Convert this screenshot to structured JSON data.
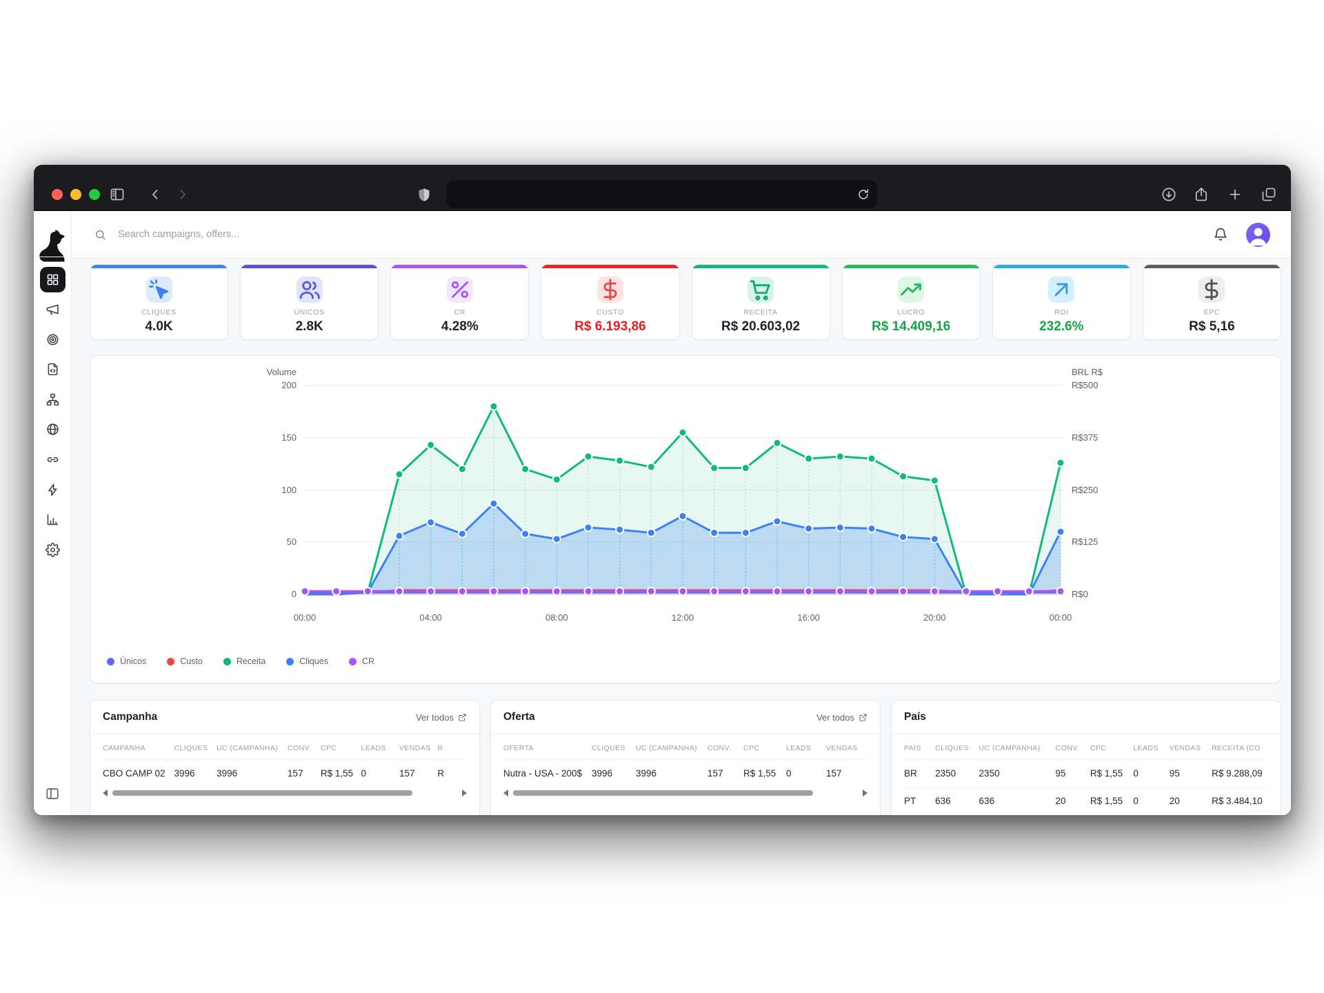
{
  "browser": {
    "traffic_lights": [
      "#ff5f57",
      "#febc2e",
      "#28c840"
    ],
    "left_icons": [
      "panel-left-icon",
      "chevron-left-icon",
      "chevron-right-icon"
    ],
    "shield_icon": "shield-icon",
    "url_value": "",
    "url_reload_icon": "reload-icon",
    "right_icons": [
      "download-icon",
      "share-icon",
      "new-tab-icon",
      "tab-overview-icon"
    ]
  },
  "brand": {
    "logo_icon": "dog-logo-icon"
  },
  "sidebar": {
    "items": [
      {
        "name": "dashboard",
        "icon": "grid-icon",
        "active": true
      },
      {
        "name": "campaigns",
        "icon": "megaphone-icon",
        "active": false
      },
      {
        "name": "tracking",
        "icon": "target-icon",
        "active": false
      },
      {
        "name": "pages",
        "icon": "file-code-icon",
        "active": false
      },
      {
        "name": "funnels",
        "icon": "sitemap-icon",
        "active": false
      },
      {
        "name": "domains",
        "icon": "globe-icon",
        "active": false
      },
      {
        "name": "links",
        "icon": "link-icon",
        "active": false
      },
      {
        "name": "integrations",
        "icon": "zap-icon",
        "active": false
      },
      {
        "name": "reports",
        "icon": "bar-chart-icon",
        "active": false
      },
      {
        "name": "settings",
        "icon": "gear-icon",
        "active": false
      }
    ],
    "collapse_icon": "sidebar-collapse-icon"
  },
  "topbar": {
    "search_placeholder": "Search campaigns, offers...",
    "bell_icon": "bell-icon",
    "avatar_icon": "user-icon"
  },
  "kpis": [
    {
      "label": "CLIQUES",
      "value": "4.0K",
      "icon": "cursor-click-icon",
      "accent": "#3b86f6",
      "tile_bg": "#dceafd",
      "icon_color": "#3b82f6",
      "value_color": "#1f2228"
    },
    {
      "label": "ÚNICOS",
      "value": "2.8K",
      "icon": "users-icon",
      "accent": "#5552d9",
      "tile_bg": "#e2e4fb",
      "icon_color": "#5b5bd6",
      "value_color": "#1f2228"
    },
    {
      "label": "CR",
      "value": "4.28%",
      "icon": "percent-icon",
      "accent": "#a855f7",
      "tile_bg": "#f2e6fc",
      "icon_color": "#a855f7",
      "value_color": "#1f2228"
    },
    {
      "label": "CUSTO",
      "value": "R$ 6.193,86",
      "icon": "dollar-icon",
      "accent": "#ee2222",
      "tile_bg": "#fde3e3",
      "icon_color": "#ef4444",
      "value_color": "#e51d1d"
    },
    {
      "label": "RECEITA",
      "value": "R$ 20.603,02",
      "icon": "cart-icon",
      "accent": "#10b981",
      "tile_bg": "#d7f3e6",
      "icon_color": "#10a875",
      "value_color": "#1f2228"
    },
    {
      "label": "LUCRO",
      "value": "R$ 14.409,16",
      "icon": "trend-up-icon",
      "accent": "#1fc05a",
      "tile_bg": "#dcf7e4",
      "icon_color": "#22b45e",
      "value_color": "#16a34a"
    },
    {
      "label": "ROI",
      "value": "232.6%",
      "icon": "arrow-up-right-icon",
      "accent": "#29aae1",
      "tile_bg": "#d3f0fd",
      "icon_color": "#3b94f0",
      "value_color": "#16a34a"
    },
    {
      "label": "EPC",
      "value": "R$ 5,16",
      "icon": "dollar-icon",
      "accent": "#5c5c66",
      "tile_bg": "#ededf0",
      "icon_color": "#52525b",
      "value_color": "#1f2228"
    }
  ],
  "chart_data": {
    "type": "line",
    "x": [
      "00:00",
      "01:00",
      "02:00",
      "03:00",
      "04:00",
      "05:00",
      "06:00",
      "07:00",
      "08:00",
      "09:00",
      "10:00",
      "11:00",
      "12:00",
      "13:00",
      "14:00",
      "15:00",
      "16:00",
      "17:00",
      "18:00",
      "19:00",
      "20:00",
      "21:00",
      "22:00",
      "23:00",
      "00:00"
    ],
    "x_tick_indices": [
      0,
      4,
      8,
      12,
      16,
      20,
      24
    ],
    "left_axis": {
      "label": "Volume",
      "ticks": [
        "0",
        "50",
        "100",
        "150",
        "200"
      ],
      "range": [
        0,
        200
      ]
    },
    "right_axis": {
      "label": "BRL R$",
      "ticks": [
        "R$0",
        "R$125",
        "R$250",
        "R$375",
        "R$500"
      ],
      "range": [
        0,
        500
      ]
    },
    "grid": true,
    "legend_position": "bottom-left",
    "series": [
      {
        "name": "Únicos",
        "color": "#6366f1",
        "values": [
          2,
          2,
          2,
          2,
          2,
          2,
          2,
          2,
          2,
          2,
          2,
          2,
          2,
          2,
          2,
          2,
          2,
          2,
          2,
          2,
          2,
          2,
          2,
          2,
          2
        ]
      },
      {
        "name": "Custo",
        "color": "#ef4444",
        "values": [
          2,
          2,
          2,
          4,
          4,
          4,
          4,
          4,
          4,
          4,
          4,
          4,
          4,
          4,
          4,
          4,
          4,
          4,
          4,
          4,
          4,
          2,
          2,
          2,
          4
        ]
      },
      {
        "name": "Receita",
        "color": "#10b981",
        "area": "rgba(16,185,129,0.10)",
        "values": [
          0,
          0,
          2,
          115,
          143,
          120,
          180,
          120,
          110,
          132,
          128,
          122,
          155,
          121,
          121,
          145,
          130,
          132,
          130,
          113,
          109,
          0,
          0,
          0,
          126
        ]
      },
      {
        "name": "Cliques",
        "color": "#3b82f6",
        "area": "rgba(59,130,246,0.25)",
        "values": [
          0,
          0,
          2,
          56,
          69,
          58,
          87,
          58,
          53,
          64,
          62,
          59,
          75,
          59,
          59,
          70,
          63,
          64,
          63,
          55,
          53,
          0,
          0,
          0,
          60
        ]
      },
      {
        "name": "CR",
        "color": "#a855f7",
        "values": [
          3,
          3,
          3,
          3,
          3,
          3,
          3,
          3,
          3,
          3,
          3,
          3,
          3,
          3,
          3,
          3,
          3,
          3,
          3,
          3,
          3,
          3,
          3,
          3,
          3
        ]
      }
    ]
  },
  "tables": [
    {
      "title": "Campanha",
      "link_label": "Ver todos",
      "link_icon": "external-link-icon",
      "columns": [
        "CAMPANHA",
        "CLIQUES",
        "UC (CAMPANHA)",
        "CONV.",
        "CPC",
        "LEADS",
        "VENDAS",
        "R"
      ],
      "rows": [
        [
          "CBO CAMP 02",
          "3996",
          "3996",
          "157",
          "R$ 1,55",
          "0",
          "157",
          "R"
        ]
      ],
      "has_scrollbar": true
    },
    {
      "title": "Oferta",
      "link_label": "Ver todos",
      "link_icon": "external-link-icon",
      "columns": [
        "OFERTA",
        "CLIQUES",
        "UC (CAMPANHA)",
        "CONV.",
        "CPC",
        "LEADS",
        "VENDAS"
      ],
      "rows": [
        [
          "Nutra - USA - 200$",
          "3996",
          "3996",
          "157",
          "R$ 1,55",
          "0",
          "157"
        ]
      ],
      "has_scrollbar": true
    },
    {
      "title": "País",
      "link_label": "",
      "link_icon": "",
      "columns": [
        "PAÍS",
        "CLIQUES",
        "UC (CAMPANHA)",
        "CONV.",
        "CPC",
        "LEADS",
        "VENDAS",
        "RECEITA (CO"
      ],
      "rows": [
        [
          "BR",
          "2350",
          "2350",
          "95",
          "R$ 1,55",
          "0",
          "95",
          "R$ 9.288,09"
        ],
        [
          "PT",
          "636",
          "636",
          "20",
          "R$ 1,55",
          "0",
          "20",
          "R$ 3.484,10"
        ]
      ],
      "has_scrollbar": false
    }
  ]
}
